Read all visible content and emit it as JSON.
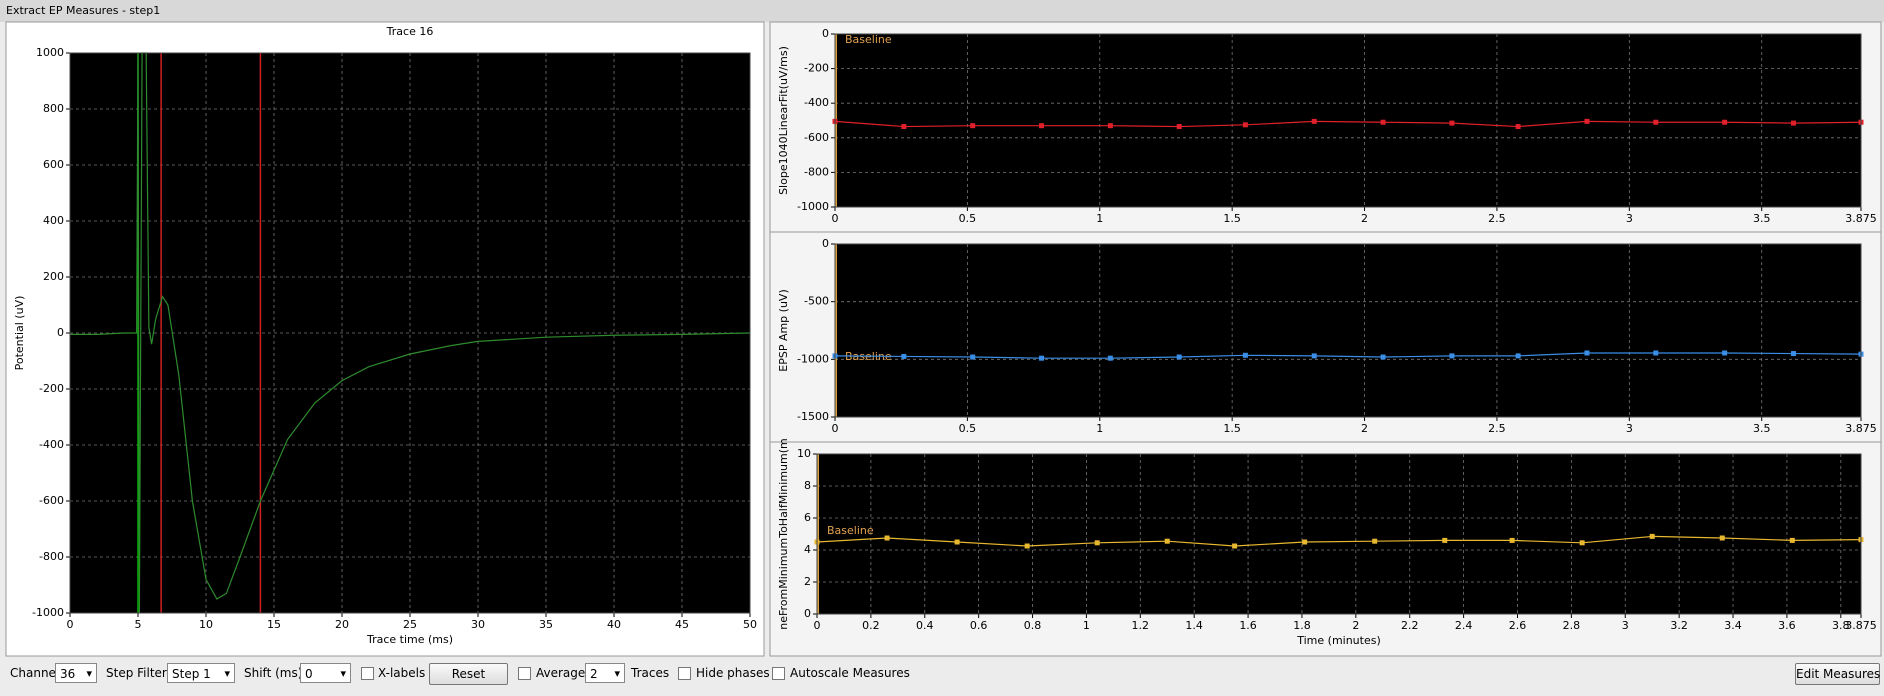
{
  "window": {
    "title": "Extract EP Measures - step1"
  },
  "chart_data": [
    {
      "type": "line",
      "title": "Trace 16",
      "x_label": "Trace time (ms)",
      "y_label": "Potential (uV)",
      "xlim": [
        0,
        50
      ],
      "xticks": [
        0,
        5,
        10,
        15,
        20,
        25,
        30,
        35,
        40,
        45,
        50
      ],
      "ylim": [
        -1000,
        1000
      ],
      "yticks": [
        -1000,
        -800,
        -600,
        -400,
        -200,
        0,
        200,
        400,
        600,
        800,
        1000
      ],
      "grid": true,
      "series": [
        {
          "color": "#2e8b2e",
          "x": [
            0,
            2,
            4,
            4.9,
            5.0,
            5.1,
            5.3,
            5.6,
            5.8,
            6.0,
            6.3,
            6.8,
            7.2,
            8,
            9,
            10,
            10.8,
            11.5,
            12.5,
            14,
            16,
            18,
            20,
            22,
            25,
            28,
            30,
            35,
            40,
            45,
            50
          ],
          "values": [
            -5,
            -5,
            0,
            0,
            1000,
            -1000,
            1000,
            1000,
            20,
            -40,
            50,
            130,
            100,
            -150,
            -600,
            -880,
            -950,
            -930,
            -800,
            -600,
            -380,
            -250,
            -170,
            -120,
            -75,
            -45,
            -30,
            -15,
            -8,
            -5,
            0
          ]
        }
      ],
      "cursors": [
        {
          "value": 5.0,
          "color": "#00b000"
        },
        {
          "value": 6.7,
          "color": "#d02020"
        },
        {
          "value": 14,
          "color": "#d02020"
        }
      ]
    },
    {
      "type": "line",
      "y_label": "Slope1040LinearFit(uV/ms)",
      "annotation": "Baseline",
      "xlim": [
        0,
        3.875
      ],
      "xticks": [
        0,
        0.5,
        1,
        1.5,
        2,
        2.5,
        3,
        3.5,
        3.875
      ],
      "ylim": [
        -1000,
        0
      ],
      "yticks": [
        -1000,
        -800,
        -600,
        -400,
        -200,
        0
      ],
      "grid": true,
      "series": [
        {
          "color": "#e0202a",
          "x": [
            0,
            0.26,
            0.52,
            0.78,
            1.04,
            1.3,
            1.55,
            1.81,
            2.07,
            2.33,
            2.58,
            2.84,
            3.1,
            3.36,
            3.62,
            3.875
          ],
          "values": [
            -505,
            -535,
            -530,
            -530,
            -530,
            -535,
            -525,
            -505,
            -510,
            -515,
            -535,
            -505,
            -510,
            -510,
            -515,
            -510
          ]
        }
      ]
    },
    {
      "type": "line",
      "y_label": "EPSP Amp (uV)",
      "annotation": "Baseline",
      "xlim": [
        0,
        3.875
      ],
      "xticks": [
        0,
        0.5,
        1,
        1.5,
        2,
        2.5,
        3,
        3.5,
        3.875
      ],
      "ylim": [
        -1500,
        0
      ],
      "yticks": [
        -1500,
        -1000,
        -500,
        0
      ],
      "grid": true,
      "series": [
        {
          "color": "#3a8ee6",
          "x": [
            0,
            0.26,
            0.52,
            0.78,
            1.04,
            1.3,
            1.55,
            1.81,
            2.07,
            2.33,
            2.58,
            2.84,
            3.1,
            3.36,
            3.62,
            3.875
          ],
          "values": [
            -970,
            -975,
            -980,
            -990,
            -990,
            -980,
            -965,
            -970,
            -980,
            -970,
            -970,
            -945,
            -945,
            -945,
            -950,
            -955
          ]
        }
      ]
    },
    {
      "type": "line",
      "y_label": "neFromMinimumToHalfMinimum(m",
      "x_label": "Time (minutes)",
      "annotation": "Baseline",
      "xlim": [
        0,
        3.875
      ],
      "xticks": [
        0,
        0.2,
        0.4,
        0.6,
        0.8,
        1,
        1.2,
        1.4,
        1.6,
        1.8,
        2,
        2.2,
        2.4,
        2.6,
        2.8,
        3,
        3.2,
        3.4,
        3.6,
        3.8,
        3.875
      ],
      "ylim": [
        0,
        10
      ],
      "yticks": [
        0,
        2,
        4,
        6,
        8,
        10
      ],
      "grid": true,
      "series": [
        {
          "color": "#e8b830",
          "x": [
            0,
            0.26,
            0.52,
            0.78,
            1.04,
            1.3,
            1.55,
            1.81,
            2.07,
            2.33,
            2.58,
            2.84,
            3.1,
            3.36,
            3.62,
            3.875
          ],
          "values": [
            4.5,
            4.75,
            4.5,
            4.25,
            4.45,
            4.55,
            4.25,
            4.5,
            4.55,
            4.6,
            4.6,
            4.45,
            4.85,
            4.75,
            4.6,
            4.65
          ]
        }
      ]
    }
  ],
  "controls": {
    "channel": {
      "label": "Channel",
      "value": "36"
    },
    "step_filter": {
      "label": "Step Filter",
      "value": "Step 1"
    },
    "shift": {
      "label": "Shift (ms)",
      "value": "0"
    },
    "x_labels": {
      "label": "X-labels",
      "checked": false
    },
    "reset": "Reset",
    "average": {
      "label": "Average",
      "checked": false,
      "value": "2",
      "suffix": "Traces"
    },
    "hide_phases": {
      "label": "Hide phases",
      "checked": false
    },
    "autoscale": {
      "label": "Autoscale Measures",
      "checked": false
    },
    "edit_measures": "Edit Measures"
  }
}
